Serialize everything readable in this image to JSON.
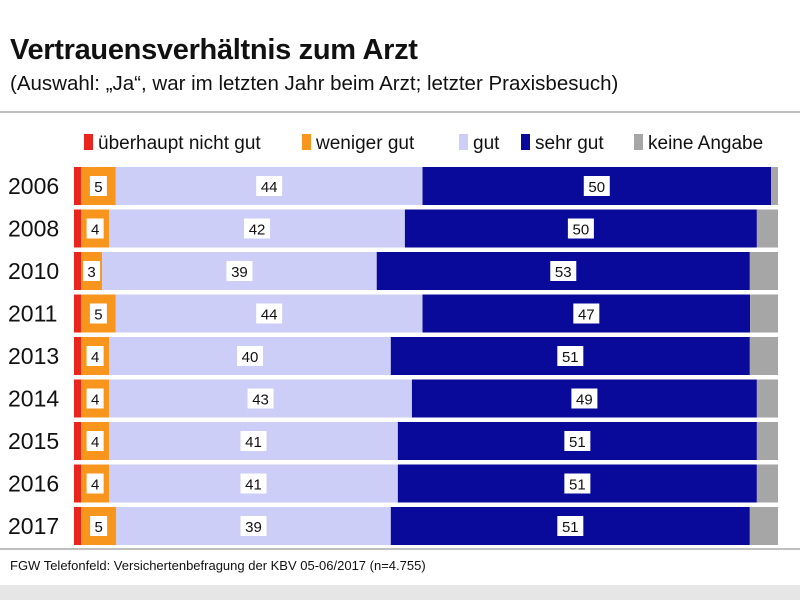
{
  "header": {
    "title": "Vertrauensverhältnis zum Arzt",
    "subtitle": "(Auswahl: „Ja“, war im letzten Jahr beim Arzt; letzter Praxisbesuch)"
  },
  "footer": {
    "source": "FGW Telefonfeld: Versichertenbefragung der KBV 05-06/2017 (n=4.755)"
  },
  "chart_data": {
    "type": "bar",
    "orientation": "horizontal",
    "stacked": true,
    "normalized": true,
    "title": "",
    "xlabel": "",
    "ylabel": "",
    "legend_position": "top",
    "grid": false,
    "xlim": [
      0,
      100
    ],
    "categories": [
      "2006",
      "2008",
      "2010",
      "2011",
      "2013",
      "2014",
      "2015",
      "2016",
      "2017"
    ],
    "series": [
      {
        "name": "überhaupt nicht gut",
        "color": "#e8261d",
        "values": [
          1,
          1,
          1,
          1,
          1,
          1,
          1,
          1,
          1
        ],
        "labels": [
          "",
          "",
          "",
          "",
          "",
          "",
          "",
          "",
          ""
        ]
      },
      {
        "name": "weniger gut",
        "color": "#f7951d",
        "values": [
          5,
          4,
          3,
          5,
          4,
          4,
          4,
          4,
          5
        ],
        "labels": [
          "5",
          "4",
          "3",
          "5",
          "4",
          "4",
          "4",
          "4",
          "5"
        ]
      },
      {
        "name": "gut",
        "color": "#cccef7",
        "values": [
          44,
          42,
          39,
          44,
          40,
          43,
          41,
          41,
          39
        ],
        "labels": [
          "44",
          "42",
          "39",
          "44",
          "40",
          "43",
          "41",
          "41",
          "39"
        ]
      },
      {
        "name": "sehr gut",
        "color": "#0a0a9a",
        "values": [
          50,
          50,
          53,
          47,
          51,
          49,
          51,
          51,
          51
        ],
        "labels": [
          "50",
          "50",
          "53",
          "47",
          "51",
          "49",
          "51",
          "51",
          "51"
        ]
      },
      {
        "name": "keine Angabe",
        "color": "#a6a6a6",
        "values": [
          1,
          3,
          4,
          4,
          4,
          3,
          3,
          3,
          4
        ],
        "labels": [
          "",
          "",
          "",
          "",
          "",
          "",
          "",
          "",
          ""
        ]
      }
    ]
  }
}
